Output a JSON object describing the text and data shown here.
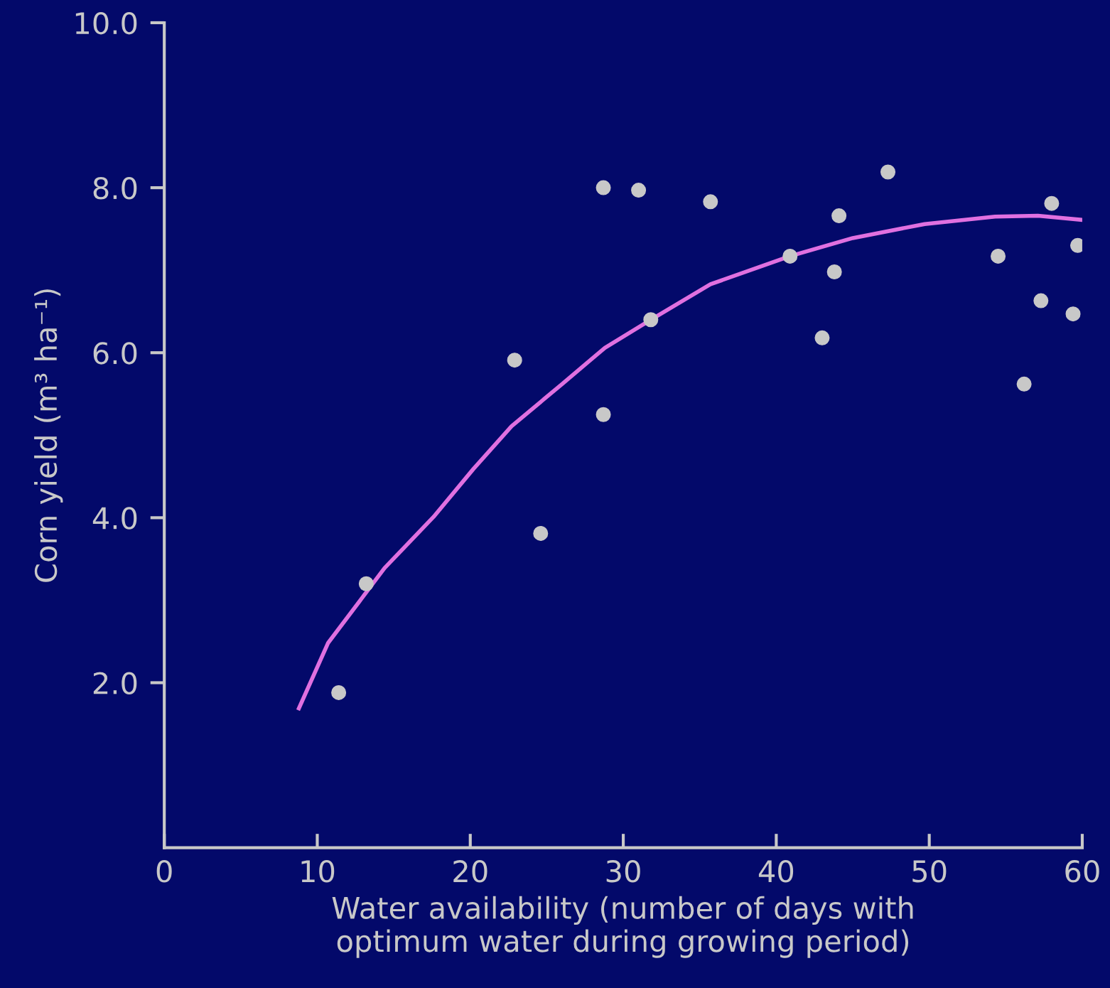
{
  "chart_data": {
    "type": "scatter",
    "xlabel": "Water availability (number of days with\noptimum water during growing period)",
    "ylabel": "Corn yield (m³ ha⁻¹)",
    "xlim": [
      0,
      60
    ],
    "ylim": [
      0,
      10
    ],
    "xticks": [
      0,
      10,
      20,
      30,
      40,
      50,
      60
    ],
    "yticks": [
      {
        "value": 2,
        "label": "2.0"
      },
      {
        "value": 4,
        "label": "4.0"
      },
      {
        "value": 6,
        "label": "6.0"
      },
      {
        "value": 8,
        "label": "8.0"
      },
      {
        "value": 10,
        "label": "10.0"
      }
    ],
    "grid": false,
    "legend": false,
    "series": [
      {
        "color": "#c8c8c8",
        "marker": "circle",
        "x": [
          11.4,
          13.2,
          22.9,
          24.6,
          28.7,
          28.7,
          31.0,
          31.8,
          35.7,
          40.9,
          43.0,
          43.8,
          44.1,
          47.3,
          54.5,
          56.2,
          57.3,
          58.0,
          59.4,
          59.7
        ],
        "values": [
          1.88,
          3.2,
          5.91,
          3.81,
          8.0,
          5.25,
          7.97,
          6.4,
          7.83,
          7.17,
          6.18,
          6.98,
          7.66,
          8.19,
          7.17,
          5.62,
          6.63,
          7.81,
          6.47,
          7.3
        ]
      },
      {
        "type": "line",
        "color": "#e070e0",
        "line_style": "solid",
        "x": [
          8.8,
          10.7,
          14.4,
          17.6,
          20.2,
          22.7,
          26.0,
          28.8,
          31.8,
          35.7,
          40.9,
          45.0,
          49.7,
          54.3,
          57.1,
          60.0
        ],
        "values": [
          1.69,
          2.48,
          3.39,
          4.01,
          4.59,
          5.11,
          5.62,
          6.06,
          6.4,
          6.83,
          7.17,
          7.39,
          7.56,
          7.65,
          7.66,
          7.61
        ]
      }
    ]
  }
}
